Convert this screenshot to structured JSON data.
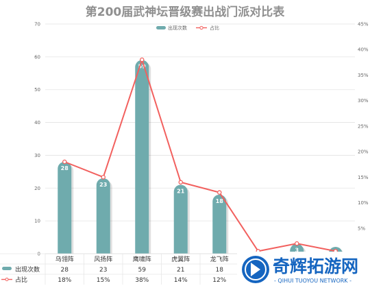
{
  "chart_data": {
    "type": "bar",
    "title": "第200届武神坛晋级赛出战门派对比表",
    "categories": [
      "乌翎阵",
      "风扬阵",
      "鹰啸阵",
      "虎翼阵",
      "龙飞阵",
      "",
      "",
      ""
    ],
    "series": [
      {
        "name": "出现次数",
        "type": "bar",
        "axis": "left",
        "values": [
          28,
          23,
          59,
          21,
          18,
          0,
          3,
          1
        ],
        "color": "#6fabad"
      },
      {
        "name": "占比",
        "type": "line",
        "axis": "right",
        "values": [
          18,
          15,
          38,
          14,
          12,
          0.5,
          2,
          0.5
        ],
        "color": "#f2605e"
      }
    ],
    "ylim": [
      0,
      70
    ],
    "yticks": [
      "0",
      "10",
      "20",
      "30",
      "40",
      "50",
      "60",
      "70"
    ],
    "y2lim": [
      0,
      45
    ],
    "y2ticks": [
      "0%",
      "5%",
      "10%",
      "15%",
      "20%",
      "25%",
      "30%",
      "35%",
      "40%",
      "45%"
    ],
    "bar_labels": [
      "28",
      "23",
      "59",
      "21",
      "18",
      "",
      "3",
      ""
    ],
    "table": {
      "rows": [
        {
          "name": "出现次数",
          "cells": [
            "28",
            "23",
            "59",
            "21",
            "18"
          ]
        },
        {
          "name": "占比",
          "cells": [
            "18%",
            "15%",
            "38%",
            "14%",
            "12%"
          ]
        }
      ]
    },
    "grid": true,
    "legend_position": "top-center"
  },
  "watermark": {
    "title": "奇辉拓游网",
    "subtitle": "- QIHUI TUOYOU NETWORK -",
    "color": "#1565c0"
  }
}
